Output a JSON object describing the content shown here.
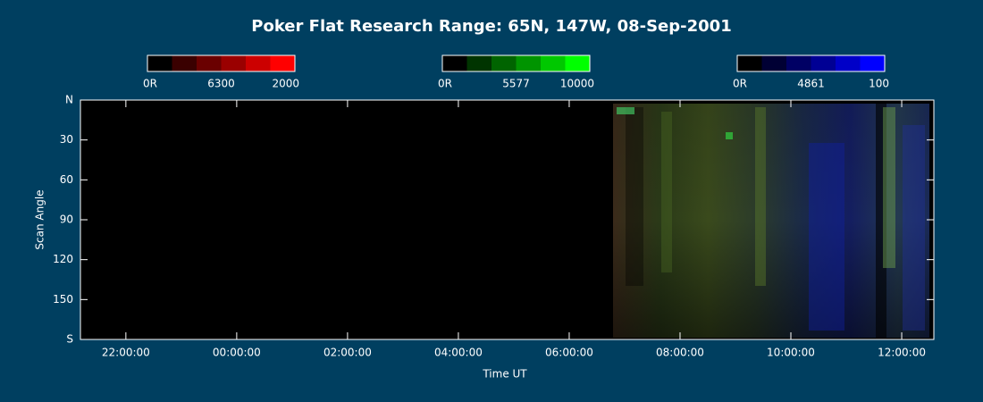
{
  "chart_data": {
    "type": "keogram",
    "title": "Poker Flat Research Range: 65N, 147W, 08-Sep-2001",
    "x_label": "Time UT",
    "y_label": "Scan Angle",
    "xlim": [
      21.18,
      36.58
    ],
    "xticks": [
      {
        "value": 22,
        "label": "22:00:00"
      },
      {
        "value": 24,
        "label": "00:00:00"
      },
      {
        "value": 26,
        "label": "02:00:00"
      },
      {
        "value": 28,
        "label": "04:00:00"
      },
      {
        "value": 30,
        "label": "06:00:00"
      },
      {
        "value": 32,
        "label": "08:00:00"
      },
      {
        "value": 34,
        "label": "10:00:00"
      },
      {
        "value": 36,
        "label": "12:00:00"
      }
    ],
    "ylim": [
      0,
      180
    ],
    "yticks": [
      {
        "value": 0,
        "label": "N"
      },
      30,
      60,
      90,
      120,
      150,
      {
        "value": 180,
        "label": "S"
      }
    ],
    "colorbars": [
      {
        "name": "6300",
        "min": {
          "value": 0,
          "label": "0R"
        },
        "max": 2000,
        "colors": [
          "#000000",
          "#3a0000",
          "#6a0000",
          "#9a0000",
          "#cc0000",
          "#ff0000"
        ]
      },
      {
        "name": "5577",
        "min": {
          "value": 0,
          "label": "0R"
        },
        "max": 10000,
        "colors": [
          "#000000",
          "#003400",
          "#006400",
          "#009400",
          "#00c800",
          "#00ff00"
        ]
      },
      {
        "name": "4861",
        "min": {
          "value": 0,
          "label": "0R"
        },
        "max": 100,
        "colors": [
          "#000000",
          "#000034",
          "#000064",
          "#000094",
          "#0000c8",
          "#0000ff"
        ]
      }
    ]
  }
}
